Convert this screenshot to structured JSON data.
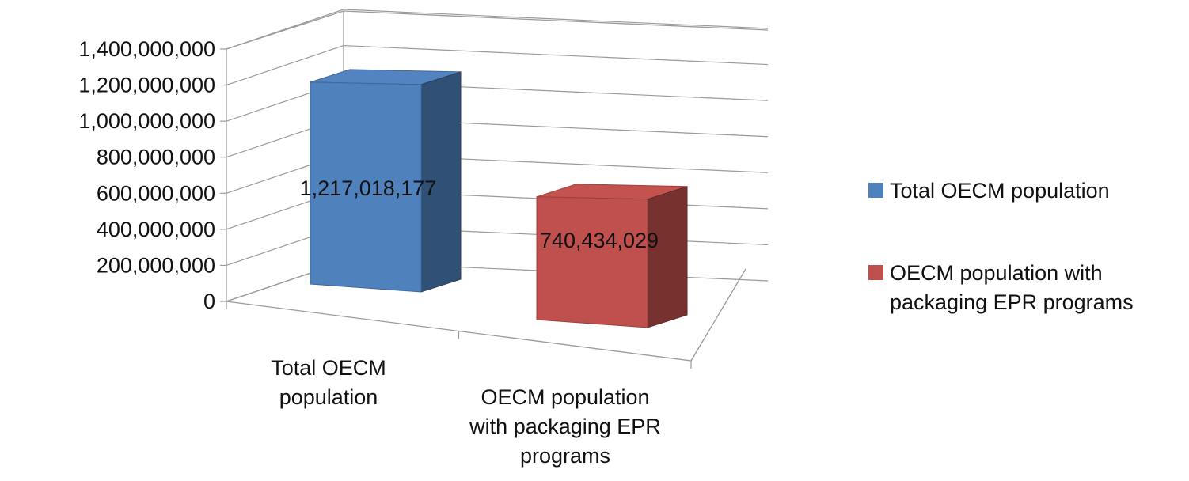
{
  "chart_data": {
    "type": "bar",
    "variant": "3d-clustered-column",
    "categories": [
      "Total OECM population",
      "OECM population with packaging EPR programs"
    ],
    "category_lines": [
      [
        "Total OECM",
        "population"
      ],
      [
        "OECM population",
        "with packaging EPR",
        "programs"
      ]
    ],
    "series": [
      {
        "name": "Total OECM population",
        "values": [
          1217018177,
          null
        ],
        "color": "#4F81BD",
        "label": "1,217,018,177"
      },
      {
        "name": "OECM population with packaging EPR programs",
        "values": [
          null,
          740434029
        ],
        "color": "#C0504D",
        "label": "740,434,029"
      }
    ],
    "legend_lines": [
      [
        "Total OECM population"
      ],
      [
        "OECM population with",
        "packaging EPR programs"
      ]
    ],
    "ylim": [
      0,
      1400000000
    ],
    "yticks": [
      {
        "value": 0,
        "label": "0"
      },
      {
        "value": 200000000,
        "label": "200,000,000"
      },
      {
        "value": 400000000,
        "label": "400,000,000"
      },
      {
        "value": 600000000,
        "label": "600,000,000"
      },
      {
        "value": 800000000,
        "label": "800,000,000"
      },
      {
        "value": 1000000000,
        "label": "1,000,000,000"
      },
      {
        "value": 1200000000,
        "label": "1,200,000,000"
      },
      {
        "value": 1400000000,
        "label": "1,400,000,000"
      }
    ],
    "grid": true,
    "legend_position": "right",
    "title": "",
    "xlabel": "",
    "ylabel": ""
  }
}
